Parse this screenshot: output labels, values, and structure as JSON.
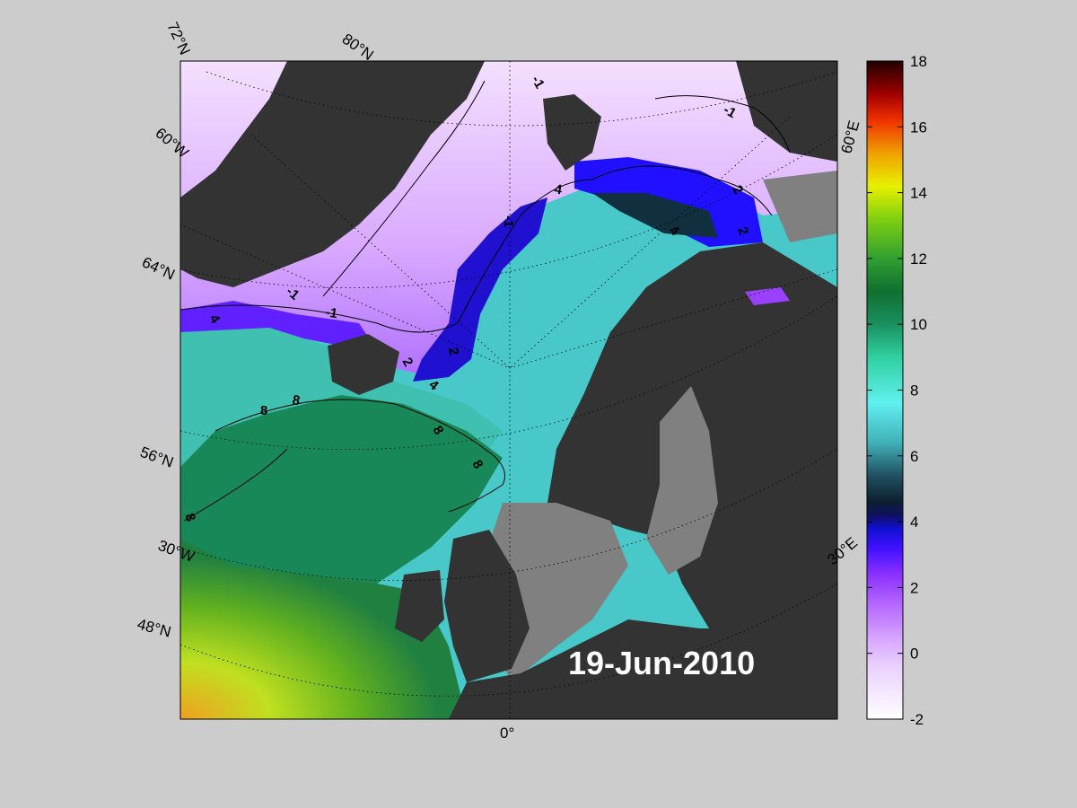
{
  "map": {
    "date_label": "19-Jun-2010",
    "latitude_labels": [
      "72°N",
      "64°N",
      "56°N",
      "48°N"
    ],
    "longitude_labels": [
      "80°N",
      "60°W",
      "30°W",
      "0°",
      "30°E",
      "60°E"
    ],
    "contour_labels": [
      "-1",
      "-1",
      "-1",
      "-1",
      "-1",
      "2",
      "2",
      "2",
      "2",
      "4",
      "4",
      "4",
      "4",
      "8",
      "8",
      "8",
      "8",
      "8"
    ],
    "colors": {
      "background": "#cccccc",
      "land": "#333333",
      "shelf": "#808080",
      "ocean_cold": "#f0d8ff",
      "ocean_warm": "#f0a020"
    }
  },
  "colorbar": {
    "min": -2,
    "max": 18,
    "ticks": [
      "18",
      "16",
      "14",
      "12",
      "10",
      "8",
      "6",
      "4",
      "2",
      "0",
      "-2"
    ],
    "colors": [
      "#ffffff",
      "#d8a8ff",
      "#9a30ff",
      "#3010ff",
      "#102040",
      "#20a0a0",
      "#60f0f0",
      "#30d090",
      "#108040",
      "#30a030",
      "#80d010",
      "#e8f000",
      "#f0a000",
      "#f03000",
      "#a00000",
      "#200000"
    ]
  }
}
